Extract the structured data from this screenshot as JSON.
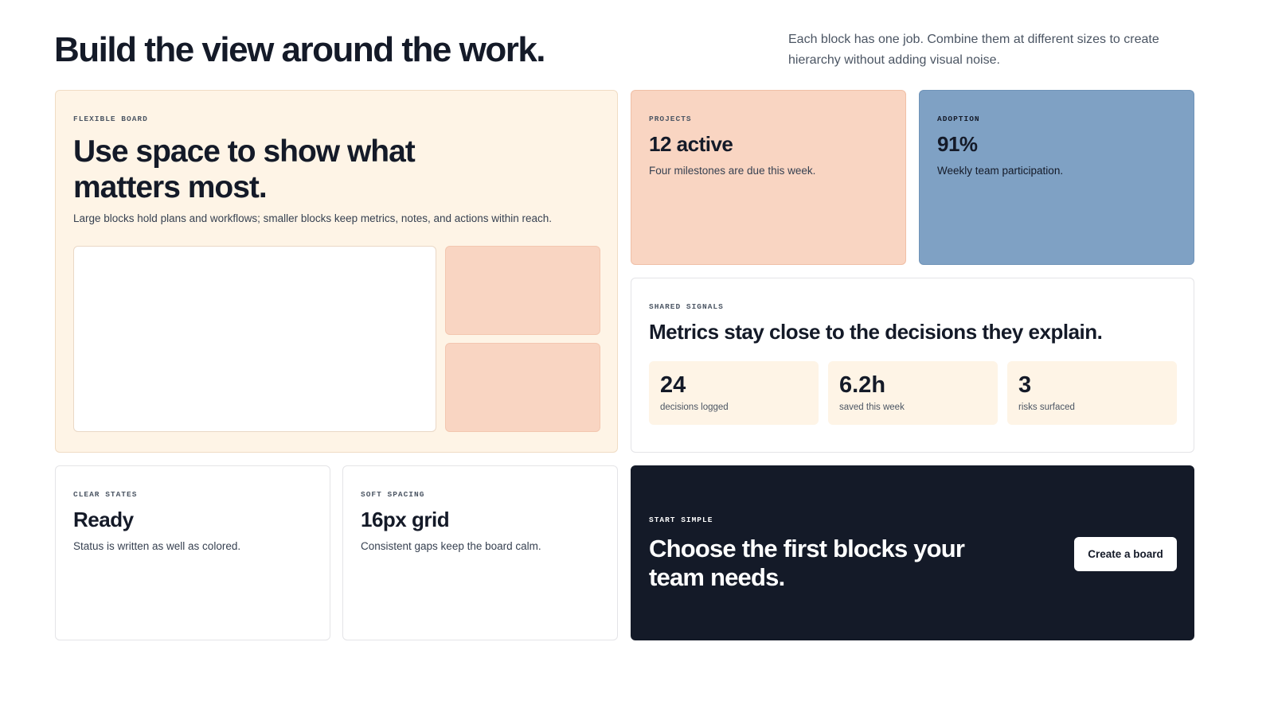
{
  "header": {
    "title": "Build the view around the work.",
    "description": "Each block has one job. Combine them at different sizes to create hierarchy without adding visual noise."
  },
  "blocks": {
    "flexible_board": {
      "label": "FLEXIBLE BOARD",
      "title": "Use space to show what matters most.",
      "text": "Large blocks hold plans and workflows; smaller blocks keep metrics, notes, and actions within reach."
    },
    "projects": {
      "label": "PROJECTS",
      "value": "12 active",
      "text": "Four milestones are due this week."
    },
    "adoption": {
      "label": "ADOPTION",
      "value": "91%",
      "text": "Weekly team participation."
    },
    "shared_signals": {
      "label": "SHARED SIGNALS",
      "title": "Metrics stay close to the decisions they explain.",
      "metrics": [
        {
          "value": "24",
          "label": "decisions logged"
        },
        {
          "value": "6.2h",
          "label": "saved this week"
        },
        {
          "value": "3",
          "label": "risks surfaced"
        }
      ]
    },
    "clear_states": {
      "label": "CLEAR STATES",
      "value": "Ready",
      "text": "Status is written as well as colored."
    },
    "soft_spacing": {
      "label": "SOFT SPACING",
      "value": "16px grid",
      "text": "Consistent gaps keep the board calm."
    },
    "start_simple": {
      "label": "START SIMPLE",
      "title": "Choose the first blocks your team needs.",
      "button": "Create a board"
    }
  }
}
